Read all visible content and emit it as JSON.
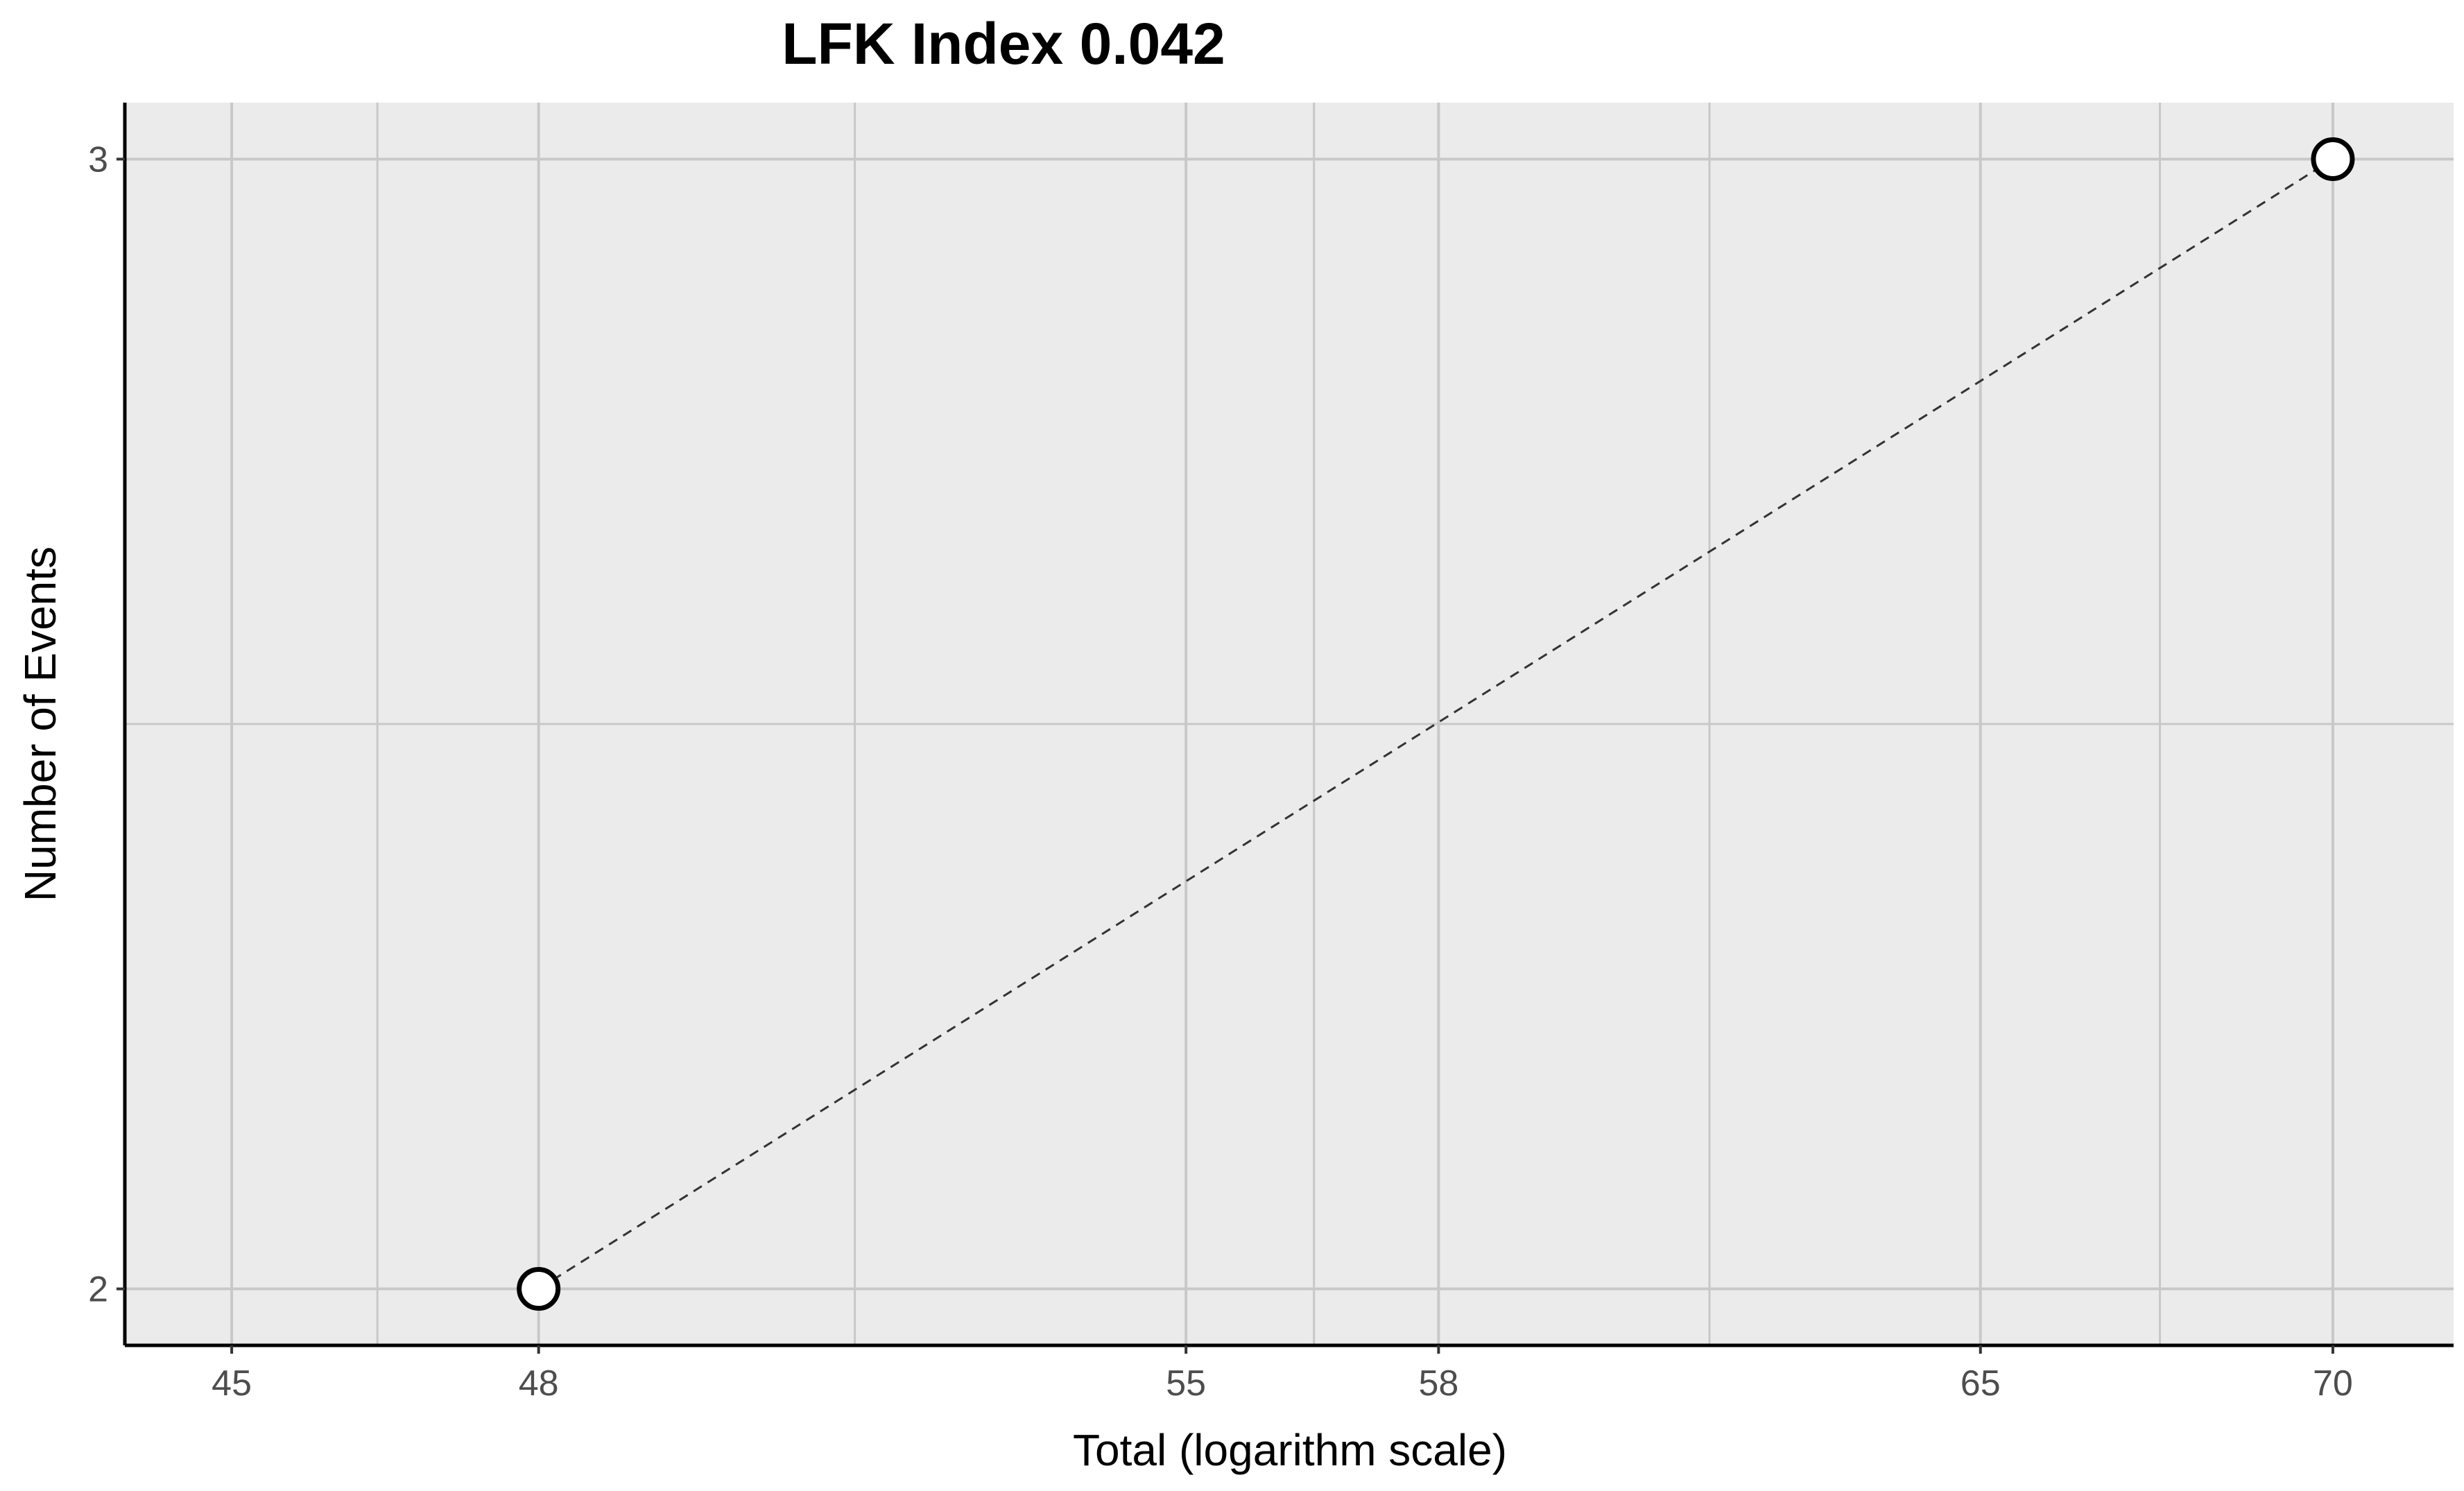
{
  "chart_data": {
    "type": "scatter",
    "title": "LFK Index 0.042",
    "xlabel": "Total (logarithm scale)",
    "ylabel": "Number of Events",
    "x_scale": "log",
    "x_tick_labels": [
      "45",
      "48",
      "55",
      "58",
      "65",
      "70"
    ],
    "x_ticks": [
      45,
      48,
      55,
      58,
      65,
      70
    ],
    "x_minor_grid": [
      46.4,
      51.3,
      56.5,
      61.4,
      67.5
    ],
    "xlim": [
      44,
      71.8
    ],
    "y_tick_labels": [
      "2",
      "3"
    ],
    "y_ticks": [
      2,
      3
    ],
    "y_minor_grid": [
      2.5
    ],
    "ylim": [
      1.95,
      3.05
    ],
    "grid": true,
    "series": [
      {
        "points": [
          {
            "x": 48,
            "y": 2
          },
          {
            "x": 70,
            "y": 3
          }
        ],
        "marker": "open-circle",
        "line": "dashed"
      }
    ],
    "colors": {
      "panel_background": "#ebebeb",
      "grid": "#c8c8c8",
      "axis_line": "#000000",
      "point_fill": "#ffffff",
      "point_stroke": "#000000",
      "line": "#333333",
      "tick_text": "#4d4d4d"
    }
  }
}
